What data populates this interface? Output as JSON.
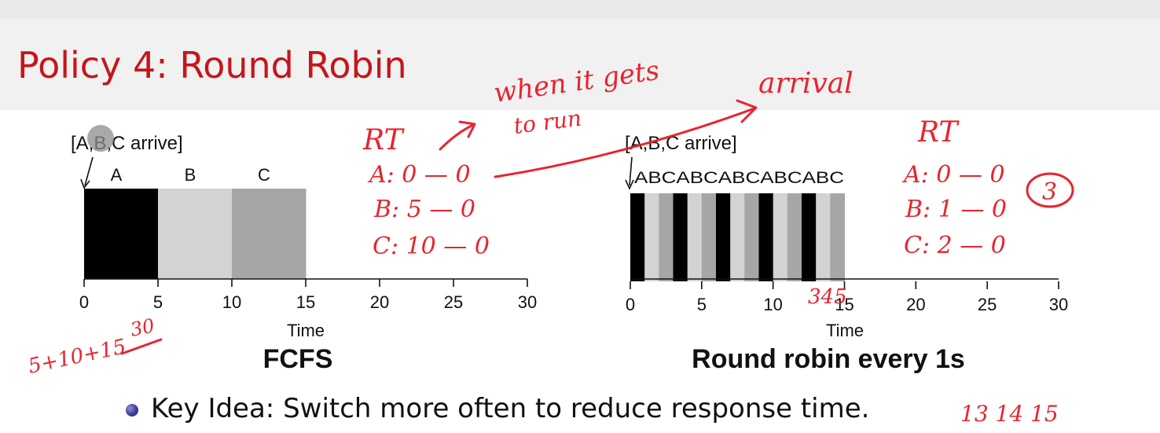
{
  "slide": {
    "title": "Policy 4: Round Robin",
    "bullet": "Key Idea: Switch more often to reduce response time.",
    "pointer_color": "#8c8c8c",
    "title_color": "#c4161c"
  },
  "chart_data": [
    {
      "type": "bar",
      "subtype": "gantt",
      "title": "FCFS",
      "xlabel": "Time",
      "annotation": "[A,B,C arrive]",
      "xlim": [
        0,
        30
      ],
      "xticks": [
        0,
        5,
        10,
        15,
        20,
        25,
        30
      ],
      "segments": [
        {
          "job": "A",
          "start": 0,
          "end": 5,
          "color": "#000000"
        },
        {
          "job": "B",
          "start": 5,
          "end": 10,
          "color": "#d3d3d3"
        },
        {
          "job": "C",
          "start": 10,
          "end": 15,
          "color": "#a6a6a6"
        }
      ]
    },
    {
      "type": "bar",
      "subtype": "gantt",
      "title": "Round robin every 1s",
      "xlabel": "Time",
      "annotation": "[A,B,C arrive]",
      "top_label": "ABCABCABCABCABC",
      "xlim": [
        0,
        30
      ],
      "xticks": [
        0,
        5,
        10,
        15,
        20,
        25,
        30
      ],
      "job_colors": {
        "A": "#000000",
        "B": "#d3d3d3",
        "C": "#a6a6a6"
      },
      "segments": [
        {
          "job": "A",
          "start": 0,
          "end": 1
        },
        {
          "job": "B",
          "start": 1,
          "end": 2
        },
        {
          "job": "C",
          "start": 2,
          "end": 3
        },
        {
          "job": "A",
          "start": 3,
          "end": 4
        },
        {
          "job": "B",
          "start": 4,
          "end": 5
        },
        {
          "job": "C",
          "start": 5,
          "end": 6
        },
        {
          "job": "A",
          "start": 6,
          "end": 7
        },
        {
          "job": "B",
          "start": 7,
          "end": 8
        },
        {
          "job": "C",
          "start": 8,
          "end": 9
        },
        {
          "job": "A",
          "start": 9,
          "end": 10
        },
        {
          "job": "B",
          "start": 10,
          "end": 11
        },
        {
          "job": "C",
          "start": 11,
          "end": 12
        },
        {
          "job": "A",
          "start": 12,
          "end": 13
        },
        {
          "job": "B",
          "start": 13,
          "end": 14
        },
        {
          "job": "C",
          "start": 14,
          "end": 15
        }
      ]
    }
  ],
  "handwriting": {
    "color": "#e8242f",
    "when_it_gets": "when it gets",
    "to_run": "to run",
    "arrival": "arrival",
    "rt_left": "RT",
    "fcfs_a": "A: 0 — 0",
    "fcfs_b": "B: 5 — 0",
    "fcfs_c": "C: 10 — 0",
    "rt_right": "RT",
    "rr_a": "A: 0 — 0",
    "rr_b": "B: 1 — 0",
    "rr_c": "C: 2 — 0",
    "circled": "3",
    "sum_expr": "5+10+15",
    "sum_total": "30",
    "axis_note": "345",
    "bullet_note": "13 14 15"
  }
}
